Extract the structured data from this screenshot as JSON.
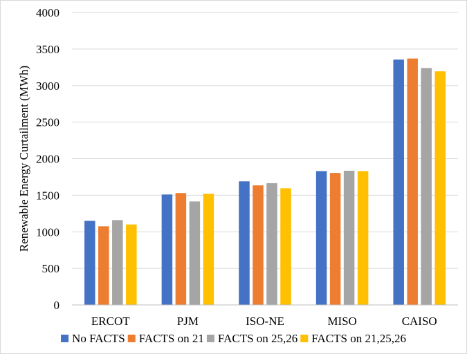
{
  "chart_data": {
    "type": "bar",
    "title": "",
    "xlabel": "",
    "ylabel": "Renewable Energy Curtailment (MWh)",
    "categories": [
      "ERCOT",
      "PJM",
      "ISO-NE",
      "MISO",
      "CAISO"
    ],
    "ylim": [
      0,
      4000
    ],
    "yticks": [
      0,
      500,
      1000,
      1500,
      2000,
      2500,
      3000,
      3500,
      4000
    ],
    "grid": true,
    "legend_position": "bottom",
    "series": [
      {
        "name": "No FACTS",
        "color": "#4472C4",
        "values": [
          1150,
          1510,
          1690,
          1830,
          3355
        ]
      },
      {
        "name": "FACTS on 21",
        "color": "#ED7D31",
        "values": [
          1075,
          1530,
          1635,
          1805,
          3370
        ]
      },
      {
        "name": "FACTS on 25,26",
        "color": "#A5A5A5",
        "values": [
          1160,
          1415,
          1665,
          1835,
          3240
        ]
      },
      {
        "name": "FACTS on 21,25,26",
        "color": "#FFC000",
        "values": [
          1100,
          1520,
          1595,
          1830,
          3195
        ]
      }
    ]
  }
}
